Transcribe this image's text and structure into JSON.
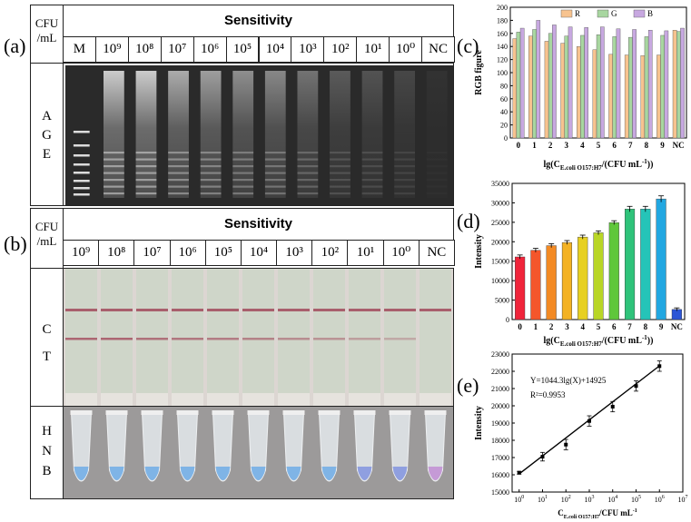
{
  "panels": {
    "a": "(a)",
    "b": "(b)",
    "c": "(c)",
    "d": "(d)",
    "e": "(e)"
  },
  "panel_a": {
    "unit_line1": "CFU",
    "unit_line2": "/mL",
    "header": "Sensitivity",
    "lanes": [
      "M",
      "10⁹",
      "10⁸",
      "10⁷",
      "10⁶",
      "10⁵",
      "10⁴",
      "10³",
      "10²",
      "10¹",
      "10⁰",
      "NC"
    ],
    "row_label": [
      "A",
      "G",
      "E"
    ]
  },
  "panel_b": {
    "unit_line1": "CFU",
    "unit_line2": "/mL",
    "header": "Sensitivity",
    "lanes": [
      "10⁹",
      "10⁸",
      "10⁷",
      "10⁶",
      "10⁵",
      "10⁴",
      "10³",
      "10²",
      "10¹",
      "10⁰",
      "NC"
    ],
    "row1_label": [
      "C",
      "T"
    ],
    "row2_label": [
      "H",
      "N",
      "B"
    ]
  },
  "chart_data": [
    {
      "id": "c",
      "type": "bar",
      "categories": [
        "0",
        "1",
        "2",
        "3",
        "4",
        "5",
        "6",
        "7",
        "8",
        "9",
        "NC"
      ],
      "series": [
        {
          "name": "R",
          "color": "#f7c38f",
          "values": [
            152,
            156,
            148,
            145,
            140,
            135,
            128,
            127,
            126,
            127,
            165
          ]
        },
        {
          "name": "G",
          "color": "#a8d6a0",
          "values": [
            162,
            166,
            160,
            156,
            157,
            158,
            155,
            154,
            155,
            157,
            163
          ]
        },
        {
          "name": "B",
          "color": "#c7a8e0",
          "values": [
            168,
            180,
            173,
            170,
            169,
            170,
            167,
            166,
            165,
            164,
            168
          ]
        }
      ],
      "ylabel": "RGB figure",
      "xlabel_main": "lg(C",
      "xlabel_sub": "E.coli O157:H7",
      "xlabel_tail": "/(CFU mL",
      "xlabel_sup": "-1",
      "xlabel_end": "))",
      "ylim": [
        0,
        200
      ],
      "yticks": [
        "0",
        "20",
        "40",
        "60",
        "80",
        "100",
        "120",
        "140",
        "160",
        "180",
        "200"
      ],
      "legend_position": "top-right"
    },
    {
      "id": "d",
      "type": "bar",
      "categories": [
        "0",
        "1",
        "2",
        "3",
        "4",
        "5",
        "6",
        "7",
        "8",
        "9",
        "NC"
      ],
      "values": [
        16100,
        17800,
        19000,
        19800,
        21200,
        22300,
        24900,
        28400,
        28400,
        31000,
        2600
      ],
      "errors": [
        500,
        500,
        500,
        500,
        500,
        500,
        500,
        700,
        700,
        800,
        400
      ],
      "colors": [
        "#f0243a",
        "#f4562b",
        "#f38a24",
        "#f3b223",
        "#e7d021",
        "#b9d626",
        "#5fc73a",
        "#2fc37a",
        "#25c4b8",
        "#22a7e1",
        "#2c55d6"
      ],
      "ylabel": "Intensity",
      "xlabel_main": "lg(C",
      "xlabel_sub": "E.coli O157:H7",
      "xlabel_tail": "/(CFU mL",
      "xlabel_sup": "-1",
      "xlabel_end": "))",
      "ylim": [
        0,
        35000
      ],
      "yticks": [
        "0",
        "5000",
        "10000",
        "15000",
        "20000",
        "25000",
        "30000",
        "35000"
      ]
    },
    {
      "id": "e",
      "type": "scatter",
      "x": [
        0,
        1,
        2,
        3,
        4,
        5,
        6
      ],
      "y": [
        16120,
        17050,
        17750,
        19120,
        19950,
        21150,
        22300
      ],
      "errors": [
        80,
        250,
        300,
        300,
        300,
        300,
        300
      ],
      "xticks": [
        "10",
        "10",
        "10",
        "10",
        "10",
        "10",
        "10",
        "10"
      ],
      "xtick_exps": [
        "0",
        "1",
        "2",
        "3",
        "4",
        "5",
        "6",
        "7"
      ],
      "equation": "Y=1044.3lg(X)+14925",
      "r2": "R²=0.9953",
      "ylabel": "Intensity",
      "xlabel_main": "C",
      "xlabel_sub": "E.coli O157:H7",
      "xlabel_tail": "/CFU mL",
      "xlabel_sup": "-1",
      "ylim": [
        15000,
        23000
      ],
      "yticks": [
        "15000",
        "16000",
        "17000",
        "18000",
        "19000",
        "20000",
        "21000",
        "22000",
        "23000"
      ],
      "xlim": [
        -0.3,
        7
      ]
    }
  ]
}
